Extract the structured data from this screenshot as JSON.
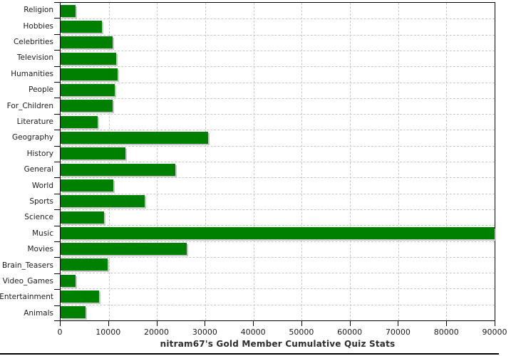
{
  "chart_data": {
    "type": "bar",
    "orientation": "horizontal",
    "title": "nitram67's Gold Member Cumulative Quiz Stats",
    "categories": [
      "Religion",
      "Hobbies",
      "Celebrities",
      "Television",
      "Humanities",
      "People",
      "For_Children",
      "Literature",
      "Geography",
      "History",
      "General",
      "World",
      "Sports",
      "Science",
      "Music",
      "Movies",
      "Brain_Teasers",
      "Video_Games",
      "Entertainment",
      "Animals"
    ],
    "values": [
      3100,
      8600,
      10800,
      11600,
      11800,
      11200,
      10800,
      7700,
      30600,
      13400,
      23800,
      11000,
      17500,
      9000,
      90000,
      26200,
      9800,
      3100,
      8000,
      5200
    ],
    "clipped_categories": [
      "Music"
    ],
    "xlim": [
      0,
      90000
    ],
    "x_ticks": [
      0,
      10000,
      20000,
      30000,
      40000,
      50000,
      60000,
      70000,
      80000,
      90000
    ],
    "x_tick_labels": [
      "0",
      "10000",
      "20000",
      "30000",
      "40000",
      "50000",
      "60000",
      "70000",
      "80000",
      "90000"
    ],
    "bar_color": "#008000",
    "grid": true,
    "legend_position": "none"
  }
}
